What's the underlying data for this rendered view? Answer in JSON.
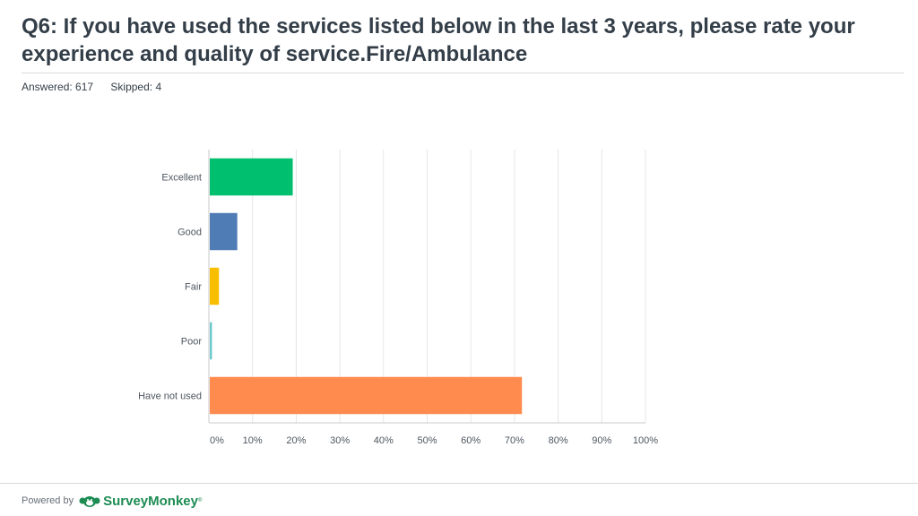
{
  "header": {
    "title": "Q6: If you have used the services listed below in the last 3 years, please rate your experience and quality of service.Fire/Ambulance",
    "answered": "Answered: 617",
    "skipped": "Skipped: 4"
  },
  "footer": {
    "powered_by": "Powered by",
    "brand": "SurveyMonkey",
    "trademark": "®"
  },
  "chart_data": {
    "type": "bar",
    "orientation": "horizontal",
    "categories": [
      "Excellent",
      "Good",
      "Fair",
      "Poor",
      "Have not used"
    ],
    "values": [
      19,
      6.3,
      2.1,
      0.5,
      71.5
    ],
    "colors": [
      "#00bf6f",
      "#507cb6",
      "#f9be00",
      "#6bc8cd",
      "#ff8b4f"
    ],
    "xlim": [
      0,
      100
    ],
    "xticks": [
      "0%",
      "10%",
      "20%",
      "30%",
      "40%",
      "50%",
      "60%",
      "70%",
      "80%",
      "90%",
      "100%"
    ],
    "grid": true,
    "title": "",
    "xlabel": "",
    "ylabel": ""
  }
}
